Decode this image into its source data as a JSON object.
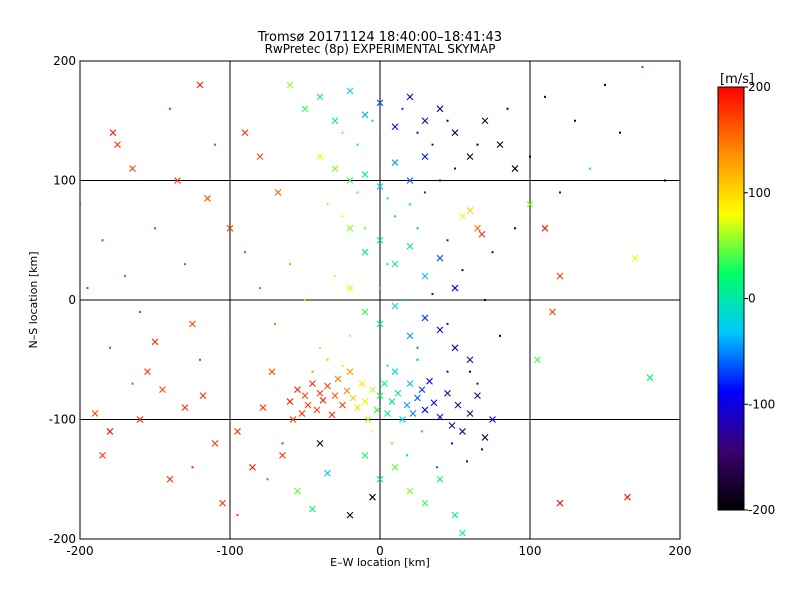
{
  "chart_data": {
    "type": "scatter",
    "title": "Tromsø 20171124 18:40:00–18:41:43",
    "subtitle": "RwPretec (8p) EXPERIMENTAL SKYMAP",
    "xlabel": "E–W location [km]",
    "ylabel": "N–S location [km]",
    "xlim": [
      -200,
      200
    ],
    "ylim": [
      -200,
      200
    ],
    "xticks": [
      -200,
      -100,
      0,
      100,
      200
    ],
    "yticks": [
      -200,
      -100,
      0,
      100,
      200
    ],
    "xtick_labels": [
      "-200",
      "-100",
      "0",
      "100",
      "200"
    ],
    "ytick_labels": [
      "-200",
      "-100",
      "0",
      "100",
      "200"
    ],
    "grid": true,
    "colorbar": {
      "label": "[m/s]",
      "min": -200,
      "max": 200,
      "ticks": [
        200,
        100,
        0,
        -100,
        -200
      ],
      "tick_labels": [
        "200",
        "100",
        "0",
        "-100",
        "-200"
      ],
      "colormap": [
        "#000000",
        "#3a0070",
        "#0000ff",
        "#00c8ff",
        "#00ff66",
        "#ffff00",
        "#ff8800",
        "#ff0000"
      ]
    },
    "marker_types": [
      "x",
      "dot"
    ],
    "points": [
      [
        -190,
        -95,
        170,
        "x"
      ],
      [
        -185,
        -130,
        180,
        "x"
      ],
      [
        -180,
        -110,
        190,
        "x"
      ],
      [
        -178,
        140,
        185,
        "x"
      ],
      [
        -175,
        130,
        180,
        "x"
      ],
      [
        -165,
        110,
        170,
        "x"
      ],
      [
        -160,
        -100,
        190,
        "x"
      ],
      [
        -155,
        -60,
        175,
        "x"
      ],
      [
        -150,
        -35,
        180,
        "x"
      ],
      [
        -145,
        -75,
        170,
        "x"
      ],
      [
        -140,
        -150,
        185,
        "x"
      ],
      [
        -135,
        100,
        180,
        "x"
      ],
      [
        -130,
        -90,
        175,
        "x"
      ],
      [
        -125,
        -20,
        170,
        "x"
      ],
      [
        -120,
        180,
        190,
        "x"
      ],
      [
        -118,
        -80,
        180,
        "x"
      ],
      [
        -115,
        85,
        165,
        "x"
      ],
      [
        -110,
        -120,
        175,
        "x"
      ],
      [
        -105,
        -170,
        180,
        "x"
      ],
      [
        -100,
        60,
        170,
        "x"
      ],
      [
        -95,
        -110,
        180,
        "x"
      ],
      [
        -90,
        140,
        175,
        "x"
      ],
      [
        -85,
        -140,
        185,
        "x"
      ],
      [
        -80,
        120,
        170,
        "x"
      ],
      [
        -78,
        -90,
        175,
        "x"
      ],
      [
        -72,
        -60,
        165,
        "x"
      ],
      [
        -68,
        90,
        155,
        "x"
      ],
      [
        -65,
        -130,
        180,
        "x"
      ],
      [
        -60,
        -85,
        185,
        "x"
      ],
      [
        -58,
        -100,
        175,
        "x"
      ],
      [
        -55,
        -75,
        190,
        "x"
      ],
      [
        -52,
        -95,
        180,
        "x"
      ],
      [
        -50,
        -80,
        170,
        "x"
      ],
      [
        -48,
        -88,
        175,
        "x"
      ],
      [
        -45,
        -70,
        185,
        "x"
      ],
      [
        -42,
        -92,
        165,
        "x"
      ],
      [
        -40,
        -78,
        175,
        "x"
      ],
      [
        -38,
        -84,
        190,
        "x"
      ],
      [
        -35,
        -72,
        170,
        "x"
      ],
      [
        -32,
        -96,
        180,
        "x"
      ],
      [
        -30,
        -80,
        160,
        "x"
      ],
      [
        -28,
        -66,
        150,
        "x"
      ],
      [
        -25,
        -88,
        175,
        "x"
      ],
      [
        -22,
        -76,
        140,
        "x"
      ],
      [
        -20,
        -60,
        130,
        "x"
      ],
      [
        -18,
        -82,
        110,
        "x"
      ],
      [
        -15,
        -90,
        100,
        "x"
      ],
      [
        -12,
        -70,
        95,
        "x"
      ],
      [
        -10,
        -85,
        80,
        "x"
      ],
      [
        -8,
        -100,
        60,
        "x"
      ],
      [
        -5,
        -75,
        70,
        "x"
      ],
      [
        -2,
        -92,
        40,
        "x"
      ],
      [
        0,
        -80,
        30,
        "x"
      ],
      [
        3,
        -70,
        20,
        "x"
      ],
      [
        5,
        -95,
        10,
        "x"
      ],
      [
        8,
        -85,
        0,
        "x"
      ],
      [
        10,
        -60,
        -10,
        "x"
      ],
      [
        12,
        -78,
        5,
        "x"
      ],
      [
        15,
        -100,
        -20,
        "x"
      ],
      [
        18,
        -88,
        -40,
        "x"
      ],
      [
        20,
        -70,
        -30,
        "x"
      ],
      [
        22,
        -95,
        -50,
        "x"
      ],
      [
        25,
        -82,
        -60,
        "x"
      ],
      [
        28,
        -75,
        -70,
        "x"
      ],
      [
        30,
        -92,
        -80,
        "x"
      ],
      [
        33,
        -68,
        -90,
        "x"
      ],
      [
        36,
        -86,
        -100,
        "x"
      ],
      [
        40,
        -98,
        -110,
        "x"
      ],
      [
        45,
        -78,
        -120,
        "x"
      ],
      [
        48,
        -105,
        -130,
        "x"
      ],
      [
        52,
        -88,
        -140,
        "x"
      ],
      [
        55,
        -110,
        -120,
        "x"
      ],
      [
        60,
        -95,
        -150,
        "x"
      ],
      [
        65,
        -80,
        -130,
        "x"
      ],
      [
        70,
        -115,
        -160,
        "x"
      ],
      [
        75,
        -100,
        -100,
        "x"
      ],
      [
        -60,
        180,
        60,
        "x"
      ],
      [
        -50,
        160,
        40,
        "x"
      ],
      [
        -40,
        170,
        20,
        "x"
      ],
      [
        -30,
        150,
        10,
        "x"
      ],
      [
        -20,
        175,
        -20,
        "x"
      ],
      [
        -10,
        155,
        -40,
        "x"
      ],
      [
        0,
        165,
        -60,
        "x"
      ],
      [
        10,
        145,
        -80,
        "x"
      ],
      [
        20,
        170,
        -100,
        "x"
      ],
      [
        30,
        150,
        -120,
        "x"
      ],
      [
        40,
        160,
        -140,
        "x"
      ],
      [
        50,
        140,
        -160,
        "x"
      ],
      [
        60,
        120,
        -180,
        "x"
      ],
      [
        70,
        150,
        -170,
        "x"
      ],
      [
        80,
        130,
        -190,
        "x"
      ],
      [
        90,
        110,
        -200,
        "x"
      ],
      [
        -40,
        120,
        90,
        "x"
      ],
      [
        -30,
        110,
        60,
        "x"
      ],
      [
        -20,
        100,
        40,
        "x"
      ],
      [
        -10,
        105,
        0,
        "x"
      ],
      [
        0,
        95,
        -20,
        "x"
      ],
      [
        10,
        115,
        -40,
        "x"
      ],
      [
        20,
        100,
        -60,
        "x"
      ],
      [
        30,
        120,
        -80,
        "x"
      ],
      [
        -20,
        60,
        60,
        "x"
      ],
      [
        -10,
        40,
        20,
        "x"
      ],
      [
        0,
        50,
        -10,
        "x"
      ],
      [
        10,
        30,
        20,
        "x"
      ],
      [
        20,
        45,
        10,
        "x"
      ],
      [
        30,
        20,
        -30,
        "x"
      ],
      [
        40,
        35,
        -60,
        "x"
      ],
      [
        50,
        10,
        -90,
        "x"
      ],
      [
        55,
        70,
        80,
        "x"
      ],
      [
        60,
        75,
        110,
        "x"
      ],
      [
        65,
        60,
        150,
        "x"
      ],
      [
        68,
        55,
        180,
        "x"
      ],
      [
        -20,
        10,
        80,
        "x"
      ],
      [
        -10,
        -10,
        40,
        "x"
      ],
      [
        0,
        -20,
        10,
        "x"
      ],
      [
        10,
        -5,
        -10,
        "x"
      ],
      [
        20,
        -30,
        -40,
        "x"
      ],
      [
        30,
        -15,
        -70,
        "x"
      ],
      [
        40,
        -25,
        -100,
        "x"
      ],
      [
        50,
        -40,
        -120,
        "x"
      ],
      [
        60,
        -50,
        -140,
        "x"
      ],
      [
        -10,
        -130,
        30,
        "x"
      ],
      [
        0,
        -150,
        -10,
        "x"
      ],
      [
        10,
        -140,
        50,
        "x"
      ],
      [
        20,
        -160,
        60,
        "x"
      ],
      [
        30,
        -170,
        40,
        "x"
      ],
      [
        40,
        -150,
        20,
        "x"
      ],
      [
        50,
        -180,
        0,
        "x"
      ],
      [
        55,
        -195,
        30,
        "x"
      ],
      [
        -20,
        -180,
        -180,
        "x"
      ],
      [
        -5,
        -165,
        -200,
        "x"
      ],
      [
        -40,
        -120,
        -190,
        "x"
      ],
      [
        -55,
        -160,
        50,
        "x"
      ],
      [
        -45,
        -175,
        30,
        "x"
      ],
      [
        -35,
        -145,
        -30,
        "x"
      ],
      [
        110,
        60,
        190,
        "x"
      ],
      [
        120,
        20,
        180,
        "x"
      ],
      [
        115,
        -10,
        170,
        "x"
      ],
      [
        100,
        80,
        60,
        "x"
      ],
      [
        105,
        -50,
        40,
        "x"
      ],
      [
        120,
        -170,
        200,
        "x"
      ],
      [
        165,
        -165,
        190,
        "x"
      ],
      [
        180,
        -65,
        30,
        "x"
      ],
      [
        170,
        35,
        80,
        "x"
      ],
      [
        -200,
        80,
        190,
        "dot"
      ],
      [
        -185,
        50,
        180,
        "dot"
      ],
      [
        -170,
        20,
        170,
        "dot"
      ],
      [
        -160,
        -10,
        180,
        "dot"
      ],
      [
        -150,
        60,
        175,
        "dot"
      ],
      [
        -140,
        160,
        185,
        "dot"
      ],
      [
        -130,
        30,
        170,
        "dot"
      ],
      [
        -120,
        -50,
        180,
        "dot"
      ],
      [
        -110,
        130,
        175,
        "dot"
      ],
      [
        -100,
        -30,
        165,
        "dot"
      ],
      [
        -90,
        40,
        170,
        "dot"
      ],
      [
        -80,
        10,
        160,
        "dot"
      ],
      [
        -70,
        -20,
        150,
        "dot"
      ],
      [
        -60,
        30,
        130,
        "dot"
      ],
      [
        -50,
        0,
        120,
        "dot"
      ],
      [
        -40,
        -40,
        110,
        "dot"
      ],
      [
        -30,
        20,
        90,
        "dot"
      ],
      [
        -20,
        -30,
        70,
        "dot"
      ],
      [
        -10,
        60,
        50,
        "dot"
      ],
      [
        0,
        10,
        30,
        "dot"
      ],
      [
        5,
        30,
        10,
        "dot"
      ],
      [
        10,
        70,
        -10,
        "dot"
      ],
      [
        15,
        0,
        -30,
        "dot"
      ],
      [
        20,
        80,
        20,
        "dot"
      ],
      [
        25,
        -40,
        -50,
        "dot"
      ],
      [
        30,
        90,
        -70,
        "dot"
      ],
      [
        35,
        5,
        -90,
        "dot"
      ],
      [
        40,
        100,
        -110,
        "dot"
      ],
      [
        45,
        -20,
        -130,
        "dot"
      ],
      [
        50,
        110,
        -150,
        "dot"
      ],
      [
        55,
        25,
        -170,
        "dot"
      ],
      [
        60,
        -60,
        -190,
        "dot"
      ],
      [
        65,
        130,
        -200,
        "dot"
      ],
      [
        70,
        0,
        -180,
        "dot"
      ],
      [
        75,
        40,
        -160,
        "dot"
      ],
      [
        80,
        -30,
        -200,
        "dot"
      ],
      [
        85,
        160,
        -190,
        "dot"
      ],
      [
        90,
        60,
        -170,
        "dot"
      ],
      [
        100,
        120,
        -200,
        "dot"
      ],
      [
        110,
        170,
        -180,
        "dot"
      ],
      [
        120,
        90,
        -150,
        "dot"
      ],
      [
        130,
        150,
        -200,
        "dot"
      ],
      [
        140,
        110,
        20,
        "dot"
      ],
      [
        150,
        180,
        -190,
        "dot"
      ],
      [
        160,
        140,
        -200,
        "dot"
      ],
      [
        175,
        195,
        190,
        "dot"
      ],
      [
        190,
        100,
        -200,
        "dot"
      ],
      [
        -5,
        -110,
        90,
        "dot"
      ],
      [
        8,
        -120,
        60,
        "dot"
      ],
      [
        18,
        -130,
        20,
        "dot"
      ],
      [
        28,
        -110,
        -20,
        "dot"
      ],
      [
        38,
        -140,
        -60,
        "dot"
      ],
      [
        48,
        -120,
        -100,
        "dot"
      ],
      [
        58,
        -135,
        -140,
        "dot"
      ],
      [
        68,
        -125,
        -160,
        "dot"
      ],
      [
        -25,
        140,
        50,
        "dot"
      ],
      [
        -15,
        130,
        20,
        "dot"
      ],
      [
        -5,
        150,
        -30,
        "dot"
      ],
      [
        15,
        160,
        -70,
        "dot"
      ],
      [
        25,
        140,
        -110,
        "dot"
      ],
      [
        35,
        130,
        -150,
        "dot"
      ],
      [
        45,
        150,
        -180,
        "dot"
      ],
      [
        -35,
        80,
        60,
        "dot"
      ],
      [
        -25,
        70,
        90,
        "dot"
      ],
      [
        -15,
        90,
        40,
        "dot"
      ],
      [
        5,
        85,
        0,
        "dot"
      ],
      [
        25,
        60,
        -40,
        "dot"
      ],
      [
        45,
        50,
        -80,
        "dot"
      ],
      [
        -45,
        -60,
        140,
        "dot"
      ],
      [
        -35,
        -50,
        120,
        "dot"
      ],
      [
        -25,
        -55,
        100,
        "dot"
      ],
      [
        5,
        -55,
        10,
        "dot"
      ],
      [
        25,
        -50,
        -40,
        "dot"
      ],
      [
        45,
        -60,
        -90,
        "dot"
      ],
      [
        65,
        -70,
        -130,
        "dot"
      ],
      [
        -65,
        -120,
        180,
        "dot"
      ],
      [
        -75,
        -150,
        170,
        "dot"
      ],
      [
        -95,
        -180,
        175,
        "dot"
      ],
      [
        -125,
        -140,
        185,
        "dot"
      ],
      [
        -165,
        -70,
        175,
        "dot"
      ],
      [
        -180,
        -40,
        180,
        "dot"
      ],
      [
        -195,
        10,
        185,
        "dot"
      ]
    ]
  }
}
